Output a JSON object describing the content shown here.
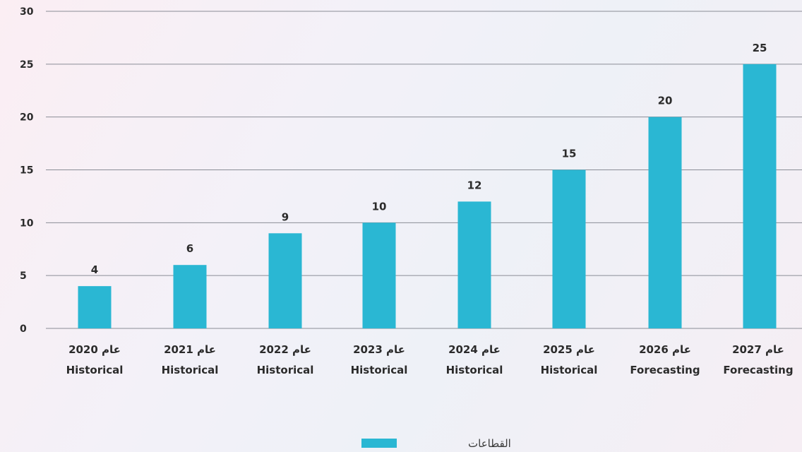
{
  "chart_data": {
    "type": "bar",
    "categories": [
      {
        "line1": "عام 2020",
        "line2": "Historical"
      },
      {
        "line1": "عام 2021",
        "line2": "Historical"
      },
      {
        "line1": "عام 2022",
        "line2": "Historical"
      },
      {
        "line1": "عام 2023",
        "line2": "Historical"
      },
      {
        "line1": "عام 2024",
        "line2": "Historical"
      },
      {
        "line1": "عام 2025",
        "line2": "Historical"
      },
      {
        "line1": "عام 2026",
        "line2": "Forecasting"
      },
      {
        "line1": "عام 2027",
        "line2": "Forecasting"
      }
    ],
    "values": [
      4,
      6,
      9,
      10,
      12,
      15,
      20,
      25
    ],
    "data_labels": [
      "4",
      "6",
      "9",
      "10",
      "12",
      "15",
      "20",
      "25"
    ],
    "yticks": [
      "0",
      "5",
      "10",
      "15",
      "20",
      "25",
      "30"
    ],
    "ylim": [
      0,
      30
    ],
    "grid": true,
    "legend": {
      "label": "القطاعات",
      "placement": "bottom-center"
    },
    "colors": {
      "bar": "#2ab7d3",
      "grid": "#8a8d96",
      "text": "#2b2b2b"
    }
  }
}
